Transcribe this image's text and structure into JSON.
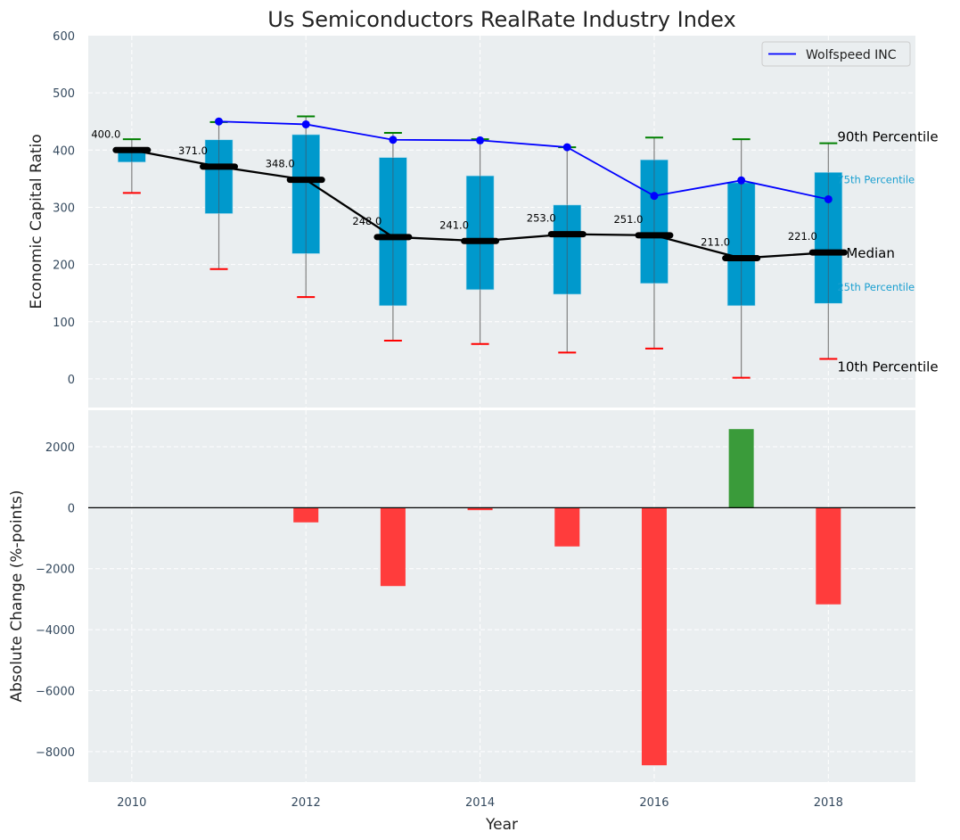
{
  "chart_data": {
    "type": "box-and-bar",
    "title": "Us Semiconductors RealRate Industry Index",
    "xlabel": "Year",
    "x": [
      2010,
      2011,
      2012,
      2013,
      2014,
      2015,
      2016,
      2017,
      2018
    ],
    "x_ticks": [
      "2010",
      "2012",
      "2014",
      "2016",
      "2018"
    ],
    "x_tick_values": [
      2010,
      2012,
      2014,
      2016,
      2018
    ],
    "xlim": [
      2009.5,
      2019.0
    ],
    "top_panel": {
      "ylabel": "Economic Capital Ratio",
      "ylim": [
        -50,
        600
      ],
      "y_ticks": [
        0,
        100,
        200,
        300,
        400,
        500,
        600
      ],
      "grid": true,
      "percentiles": {
        "p10": [
          325,
          192,
          143,
          67,
          61,
          46,
          53,
          2,
          35
        ],
        "p25": [
          379,
          289,
          219,
          128,
          156,
          148,
          167,
          128,
          132
        ],
        "median": [
          400,
          371,
          348,
          248,
          241,
          253,
          251,
          211,
          221
        ],
        "p75": [
          400,
          418,
          427,
          387,
          355,
          304,
          383,
          343,
          361
        ],
        "p90": [
          419,
          449,
          459,
          430,
          419,
          405,
          422,
          419,
          412
        ]
      },
      "median_labels": [
        "400.0",
        "371.0",
        "348.0",
        "248.0",
        "241.0",
        "253.0",
        "251.0",
        "211.0",
        "221.0"
      ],
      "series": [
        {
          "name": "Wolfspeed INC",
          "x": [
            2011,
            2012,
            2013,
            2014,
            2015,
            2016,
            2017,
            2018
          ],
          "values": [
            450,
            445,
            418,
            417,
            405,
            320,
            347,
            314
          ],
          "color": "#0000ff"
        }
      ],
      "annotations": {
        "p90": "90th Percentile",
        "p75": "75th Percentile",
        "median": "Median",
        "p25": "25th Percentile",
        "p10": "10th Percentile"
      },
      "legend": {
        "entries": [
          "Wolfspeed INC"
        ],
        "placement": "top-right"
      }
    },
    "bottom_panel": {
      "type": "bar",
      "ylabel": "Absolute Change (%-points)",
      "ylim": [
        -9000,
        3200
      ],
      "y_ticks": [
        -8000,
        -6000,
        -4000,
        -2000,
        0,
        2000
      ],
      "y_tick_labels": [
        "−8000",
        "−6000",
        "−4000",
        "−2000",
        "0",
        "2000"
      ],
      "grid": true,
      "x": [
        2012,
        2013,
        2014,
        2015,
        2016,
        2017,
        2018
      ],
      "values": [
        -480,
        -2570,
        -80,
        -1270,
        -8450,
        2580,
        -3170
      ]
    },
    "colors": {
      "box": "#0099cc",
      "median": "#000000",
      "p90_cap": "#008000",
      "p10_cap": "#ff0000",
      "whisker": "#808080",
      "positive_bar": "#3a9b3a",
      "negative_bar": "#ff3c3c",
      "background": "#eaeef0"
    }
  }
}
